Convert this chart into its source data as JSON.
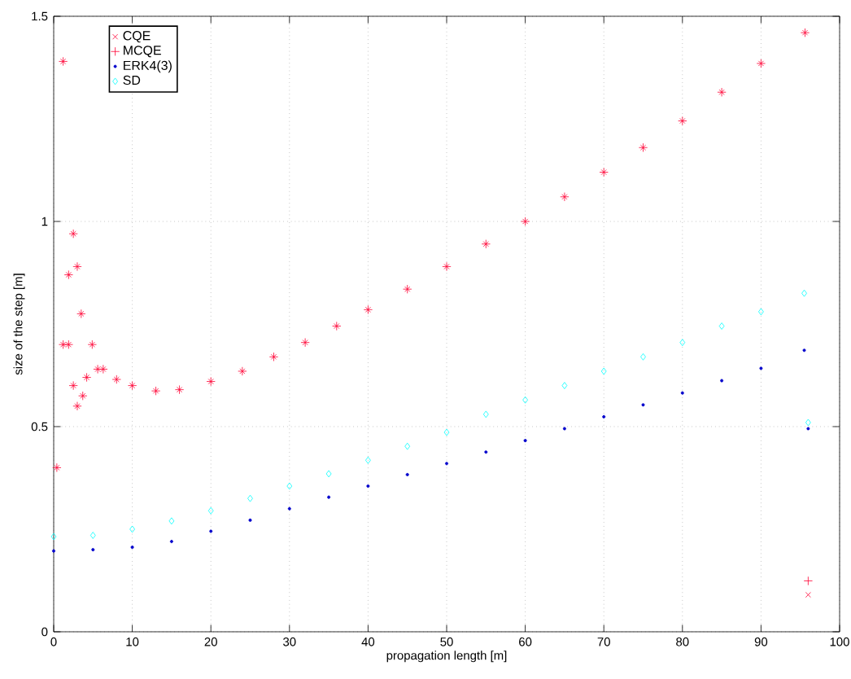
{
  "chart_data": {
    "type": "scatter",
    "xlabel": "propagation length [m]",
    "ylabel": "size of the step [m]",
    "xlim": [
      0,
      100
    ],
    "ylim": [
      0,
      1.5
    ],
    "xticks": [
      0,
      10,
      20,
      30,
      40,
      50,
      60,
      70,
      80,
      90,
      100
    ],
    "yticks": [
      0,
      0.5,
      1,
      1.5
    ],
    "grid": true,
    "legend": "top left",
    "series": [
      {
        "name": "CQE",
        "color": "#ff0033",
        "marker": "cross",
        "x": [
          0.4,
          1.2,
          1.2,
          1.9,
          1.9,
          2.5,
          2.5,
          3.0,
          3.0,
          3.5,
          3.7,
          4.2,
          4.9,
          5.6,
          6.3,
          8,
          10,
          13,
          16,
          20,
          24,
          28,
          32,
          36,
          40,
          45,
          50,
          55,
          60,
          65,
          70,
          75,
          80,
          85,
          90,
          95.6,
          96
        ],
        "values": [
          0.4,
          1.39,
          0.7,
          0.7,
          0.87,
          0.97,
          0.6,
          0.89,
          0.55,
          0.775,
          0.575,
          0.62,
          0.7,
          0.64,
          0.64,
          0.615,
          0.6,
          0.587,
          0.59,
          0.61,
          0.635,
          0.67,
          0.705,
          0.745,
          0.785,
          0.835,
          0.89,
          0.945,
          1.0,
          1.06,
          1.12,
          1.18,
          1.245,
          1.315,
          1.385,
          1.46,
          0.09
        ]
      },
      {
        "name": "MCQE",
        "color": "#ff0033",
        "marker": "plus",
        "x": [
          0.4,
          1.2,
          1.2,
          1.9,
          1.9,
          2.5,
          2.5,
          3.0,
          3.0,
          3.5,
          3.7,
          4.2,
          4.9,
          5.6,
          6.3,
          8,
          10,
          13,
          16,
          20,
          24,
          28,
          32,
          36,
          40,
          45,
          50,
          55,
          60,
          65,
          70,
          75,
          80,
          85,
          90,
          95.6,
          96
        ],
        "values": [
          0.4,
          1.39,
          0.7,
          0.7,
          0.87,
          0.97,
          0.6,
          0.89,
          0.55,
          0.775,
          0.575,
          0.62,
          0.7,
          0.64,
          0.64,
          0.615,
          0.6,
          0.587,
          0.59,
          0.61,
          0.635,
          0.67,
          0.705,
          0.745,
          0.785,
          0.835,
          0.89,
          0.945,
          1.0,
          1.06,
          1.12,
          1.18,
          1.245,
          1.315,
          1.385,
          1.46,
          0.124
        ]
      },
      {
        "name": "ERK4(3)",
        "color": "#0000cc",
        "marker": "circle",
        "x": [
          0,
          5,
          10,
          15,
          20,
          25,
          30,
          35,
          40,
          45,
          50,
          55,
          60,
          65,
          70,
          75,
          80,
          85,
          90,
          95.5,
          96
        ],
        "values": [
          0.197,
          0.2,
          0.206,
          0.22,
          0.245,
          0.272,
          0.3,
          0.328,
          0.355,
          0.383,
          0.41,
          0.438,
          0.466,
          0.495,
          0.524,
          0.553,
          0.582,
          0.612,
          0.642,
          0.686,
          0.495
        ]
      },
      {
        "name": "SD",
        "color": "#00ffff",
        "marker": "diamond",
        "x": [
          0,
          5,
          10,
          15,
          20,
          25,
          30,
          35,
          40,
          45,
          50,
          55,
          60,
          65,
          70,
          75,
          80,
          85,
          90,
          95.5,
          96
        ],
        "values": [
          0.232,
          0.235,
          0.25,
          0.27,
          0.295,
          0.325,
          0.355,
          0.385,
          0.418,
          0.452,
          0.486,
          0.53,
          0.565,
          0.6,
          0.635,
          0.67,
          0.705,
          0.745,
          0.78,
          0.825,
          0.51
        ]
      }
    ]
  }
}
